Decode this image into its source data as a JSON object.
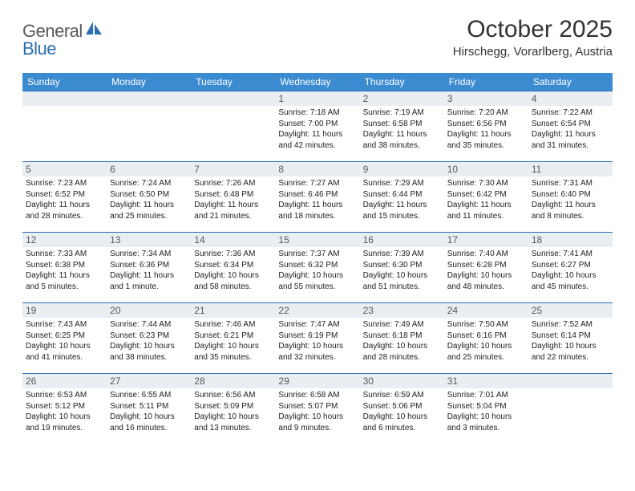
{
  "brand": {
    "first": "General",
    "second": "Blue"
  },
  "title": "October 2025",
  "location": "Hirschegg, Vorarlberg, Austria",
  "colors": {
    "header_bg": "#3b8bd0",
    "header_text": "#ffffff",
    "daynum_bg": "#e9eef3",
    "day_border": "#2c6fb3",
    "body_text": "#222222",
    "title_text": "#333333",
    "logo_gray": "#5a5a5a",
    "logo_blue": "#2c6fb3"
  },
  "weekdays": [
    "Sunday",
    "Monday",
    "Tuesday",
    "Wednesday",
    "Thursday",
    "Friday",
    "Saturday"
  ],
  "weeks": [
    [
      {
        "empty": true
      },
      {
        "empty": true
      },
      {
        "empty": true
      },
      {
        "n": "1",
        "sr": "7:18 AM",
        "ss": "7:00 PM",
        "dl": "11 hours and 42 minutes."
      },
      {
        "n": "2",
        "sr": "7:19 AM",
        "ss": "6:58 PM",
        "dl": "11 hours and 38 minutes."
      },
      {
        "n": "3",
        "sr": "7:20 AM",
        "ss": "6:56 PM",
        "dl": "11 hours and 35 minutes."
      },
      {
        "n": "4",
        "sr": "7:22 AM",
        "ss": "6:54 PM",
        "dl": "11 hours and 31 minutes."
      }
    ],
    [
      {
        "n": "5",
        "sr": "7:23 AM",
        "ss": "6:52 PM",
        "dl": "11 hours and 28 minutes."
      },
      {
        "n": "6",
        "sr": "7:24 AM",
        "ss": "6:50 PM",
        "dl": "11 hours and 25 minutes."
      },
      {
        "n": "7",
        "sr": "7:26 AM",
        "ss": "6:48 PM",
        "dl": "11 hours and 21 minutes."
      },
      {
        "n": "8",
        "sr": "7:27 AM",
        "ss": "6:46 PM",
        "dl": "11 hours and 18 minutes."
      },
      {
        "n": "9",
        "sr": "7:29 AM",
        "ss": "6:44 PM",
        "dl": "11 hours and 15 minutes."
      },
      {
        "n": "10",
        "sr": "7:30 AM",
        "ss": "6:42 PM",
        "dl": "11 hours and 11 minutes."
      },
      {
        "n": "11",
        "sr": "7:31 AM",
        "ss": "6:40 PM",
        "dl": "11 hours and 8 minutes."
      }
    ],
    [
      {
        "n": "12",
        "sr": "7:33 AM",
        "ss": "6:38 PM",
        "dl": "11 hours and 5 minutes."
      },
      {
        "n": "13",
        "sr": "7:34 AM",
        "ss": "6:36 PM",
        "dl": "11 hours and 1 minute."
      },
      {
        "n": "14",
        "sr": "7:36 AM",
        "ss": "6:34 PM",
        "dl": "10 hours and 58 minutes."
      },
      {
        "n": "15",
        "sr": "7:37 AM",
        "ss": "6:32 PM",
        "dl": "10 hours and 55 minutes."
      },
      {
        "n": "16",
        "sr": "7:39 AM",
        "ss": "6:30 PM",
        "dl": "10 hours and 51 minutes."
      },
      {
        "n": "17",
        "sr": "7:40 AM",
        "ss": "6:28 PM",
        "dl": "10 hours and 48 minutes."
      },
      {
        "n": "18",
        "sr": "7:41 AM",
        "ss": "6:27 PM",
        "dl": "10 hours and 45 minutes."
      }
    ],
    [
      {
        "n": "19",
        "sr": "7:43 AM",
        "ss": "6:25 PM",
        "dl": "10 hours and 41 minutes."
      },
      {
        "n": "20",
        "sr": "7:44 AM",
        "ss": "6:23 PM",
        "dl": "10 hours and 38 minutes."
      },
      {
        "n": "21",
        "sr": "7:46 AM",
        "ss": "6:21 PM",
        "dl": "10 hours and 35 minutes."
      },
      {
        "n": "22",
        "sr": "7:47 AM",
        "ss": "6:19 PM",
        "dl": "10 hours and 32 minutes."
      },
      {
        "n": "23",
        "sr": "7:49 AM",
        "ss": "6:18 PM",
        "dl": "10 hours and 28 minutes."
      },
      {
        "n": "24",
        "sr": "7:50 AM",
        "ss": "6:16 PM",
        "dl": "10 hours and 25 minutes."
      },
      {
        "n": "25",
        "sr": "7:52 AM",
        "ss": "6:14 PM",
        "dl": "10 hours and 22 minutes."
      }
    ],
    [
      {
        "n": "26",
        "sr": "6:53 AM",
        "ss": "5:12 PM",
        "dl": "10 hours and 19 minutes."
      },
      {
        "n": "27",
        "sr": "6:55 AM",
        "ss": "5:11 PM",
        "dl": "10 hours and 16 minutes."
      },
      {
        "n": "28",
        "sr": "6:56 AM",
        "ss": "5:09 PM",
        "dl": "10 hours and 13 minutes."
      },
      {
        "n": "29",
        "sr": "6:58 AM",
        "ss": "5:07 PM",
        "dl": "10 hours and 9 minutes."
      },
      {
        "n": "30",
        "sr": "6:59 AM",
        "ss": "5:06 PM",
        "dl": "10 hours and 6 minutes."
      },
      {
        "n": "31",
        "sr": "7:01 AM",
        "ss": "5:04 PM",
        "dl": "10 hours and 3 minutes."
      },
      {
        "empty": true
      }
    ]
  ],
  "labels": {
    "sunrise": "Sunrise:",
    "sunset": "Sunset:",
    "daylight": "Daylight:"
  }
}
